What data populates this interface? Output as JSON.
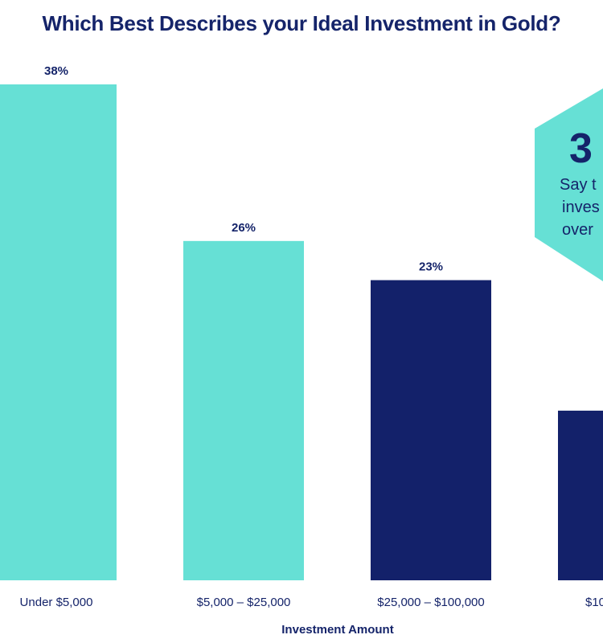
{
  "chart_data": {
    "type": "bar",
    "title": "Which Best Describes your Ideal Investment in Gold?",
    "xlabel": "Investment Amount",
    "ylabel": "",
    "categories": [
      "Under $5,000",
      "$5,000 – $25,000",
      "$25,000 – $100,000",
      "$10"
    ],
    "values": [
      38,
      26,
      23,
      13
    ],
    "data_labels": [
      "38%",
      "26%",
      "23%",
      ""
    ],
    "bar_colors": [
      "#66e0d5",
      "#66e0d5",
      "#13216a",
      "#13216a"
    ],
    "ylim": [
      0,
      38
    ],
    "grid": false,
    "callout": {
      "big_text": "3",
      "lines": [
        "Say t",
        "inves",
        "over"
      ],
      "color": "#66e0d5"
    }
  }
}
